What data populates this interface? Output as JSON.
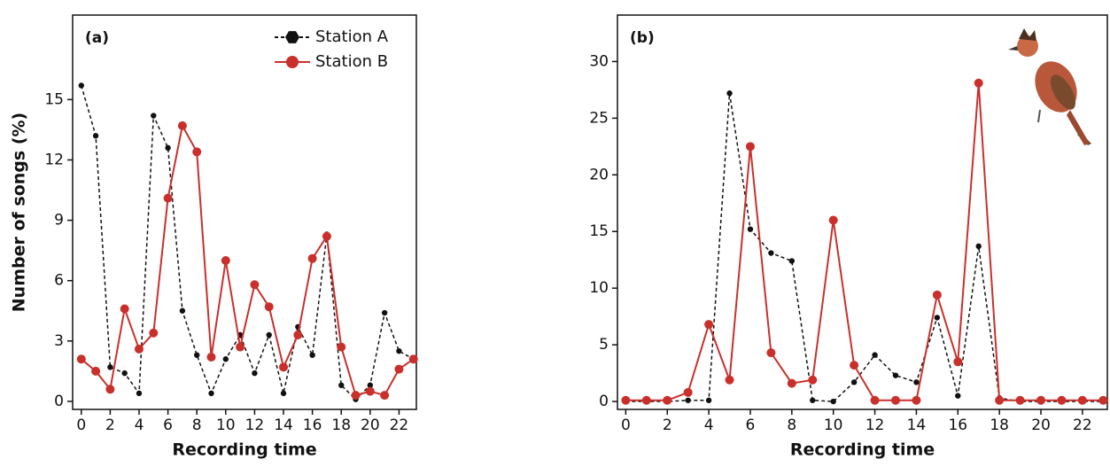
{
  "chart_data": [
    {
      "type": "line",
      "panel_label": "(a)",
      "y_label": "Number of songs (%)",
      "x_label": "Recording time",
      "xlim": [
        -0.6,
        23.2
      ],
      "ylim": [
        -0.4,
        19.2
      ],
      "xticks": [
        0,
        2,
        4,
        6,
        8,
        10,
        12,
        14,
        16,
        18,
        20,
        22
      ],
      "yticks": [
        0,
        3,
        6,
        9,
        12,
        15
      ],
      "legend": "upper right",
      "x": [
        0,
        1,
        2,
        3,
        4,
        5,
        6,
        7,
        8,
        9,
        10,
        11,
        12,
        13,
        14,
        15,
        16,
        17,
        18,
        19,
        20,
        21,
        22,
        23
      ],
      "series": [
        {
          "name": "Station A",
          "color": "#111111",
          "dash": "dashed",
          "marker": "hexagon",
          "values": [
            15.7,
            13.2,
            1.7,
            1.4,
            0.4,
            14.2,
            12.6,
            4.5,
            2.3,
            0.4,
            2.1,
            3.3,
            1.4,
            3.3,
            0.4,
            3.7,
            2.3,
            8.3,
            0.8,
            0.1,
            0.8,
            4.4,
            2.5,
            2.1
          ]
        },
        {
          "name": "Station B",
          "color": "#c9302c",
          "dash": "solid",
          "marker": "circle",
          "values": [
            2.1,
            1.5,
            0.6,
            4.6,
            2.6,
            3.4,
            10.1,
            13.7,
            12.4,
            2.2,
            7.0,
            2.7,
            5.8,
            4.7,
            1.7,
            3.3,
            7.1,
            8.2,
            2.7,
            0.3,
            0.5,
            0.3,
            1.6,
            2.1
          ]
        }
      ]
    },
    {
      "type": "line",
      "panel_label": "(b)",
      "x_label": "Recording time",
      "xlim": [
        -0.4,
        23.2
      ],
      "ylim": [
        -0.7,
        34.1
      ],
      "xticks": [
        0,
        2,
        4,
        6,
        8,
        10,
        12,
        14,
        16,
        18,
        20,
        22
      ],
      "yticks": [
        0,
        5,
        10,
        15,
        20,
        25,
        30
      ],
      "x": [
        0,
        1,
        2,
        3,
        4,
        5,
        6,
        7,
        8,
        9,
        10,
        11,
        12,
        13,
        14,
        15,
        16,
        17,
        18,
        19,
        20,
        21,
        22,
        23
      ],
      "series": [
        {
          "color": "#111111",
          "dash": "dashed",
          "marker": "hexagon",
          "values": [
            0,
            0,
            0,
            0.1,
            0.1,
            27.2,
            15.2,
            13.1,
            12.4,
            0.1,
            0,
            1.7,
            4.1,
            2.3,
            1.7,
            7.4,
            0.5,
            13.7,
            0.3,
            0,
            0,
            0,
            0,
            0
          ]
        },
        {
          "color": "#c9302c",
          "dash": "solid",
          "marker": "circle",
          "values": [
            0.1,
            0.1,
            0.1,
            0.8,
            6.8,
            1.9,
            22.5,
            4.3,
            1.6,
            1.9,
            16,
            3.2,
            0.1,
            0.1,
            0.1,
            9.4,
            3.5,
            28.1,
            0.1,
            0.1,
            0.1,
            0.1,
            0.1,
            0.1
          ]
        }
      ]
    }
  ]
}
